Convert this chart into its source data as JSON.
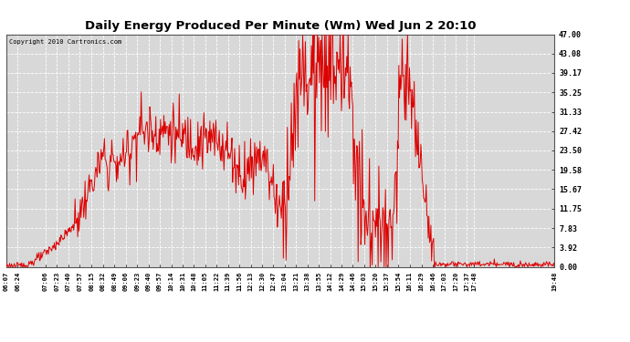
{
  "title": "Daily Energy Produced Per Minute (Wm) Wed Jun 2 20:10",
  "copyright": "Copyright 2010 Cartronics.com",
  "line_color": "#dd0000",
  "background_color": "#ffffff",
  "plot_bg_color": "#d8d8d8",
  "grid_color": "#ffffff",
  "yticks": [
    0.0,
    3.92,
    7.83,
    11.75,
    15.67,
    19.58,
    23.5,
    27.42,
    31.33,
    35.25,
    39.17,
    43.08,
    47.0
  ],
  "ylim": [
    0,
    47
  ],
  "xtick_labels": [
    "06:07",
    "06:24",
    "07:06",
    "07:23",
    "07:40",
    "07:57",
    "08:15",
    "08:32",
    "08:49",
    "09:06",
    "09:23",
    "09:40",
    "09:57",
    "10:14",
    "10:31",
    "10:48",
    "11:05",
    "11:22",
    "11:39",
    "11:56",
    "12:13",
    "12:30",
    "12:47",
    "13:04",
    "13:21",
    "13:38",
    "13:55",
    "14:12",
    "14:29",
    "14:46",
    "15:03",
    "15:20",
    "15:37",
    "15:54",
    "16:11",
    "16:29",
    "16:46",
    "17:03",
    "17:20",
    "17:37",
    "17:48",
    "19:48"
  ],
  "start_time": "06:07",
  "end_time": "19:48"
}
